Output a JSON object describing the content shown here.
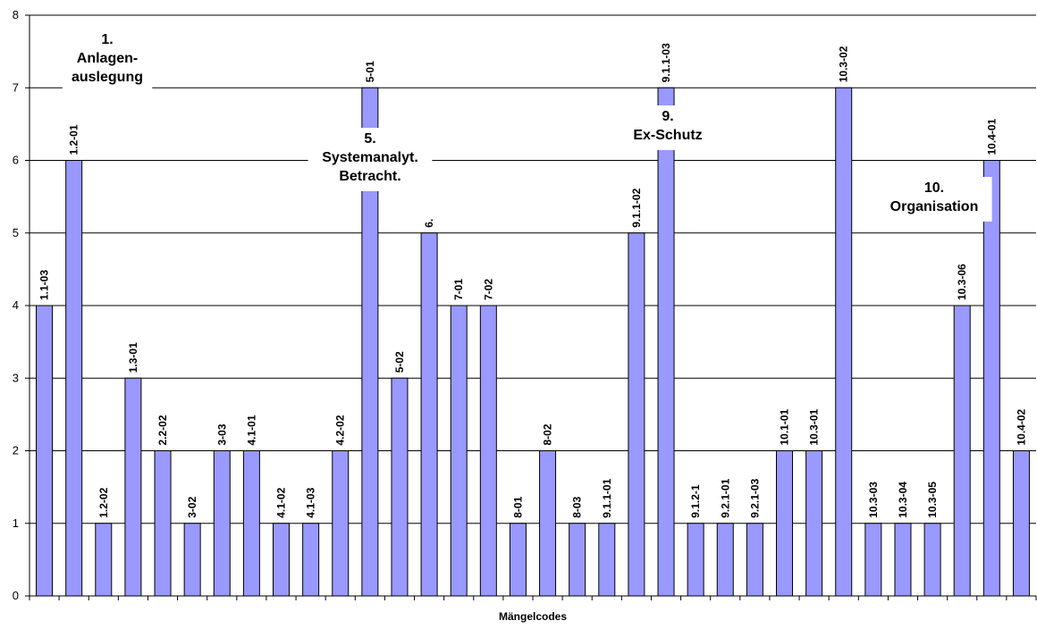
{
  "chart_data": {
    "type": "bar",
    "xlabel": "Mängelcodes",
    "ylabel": "",
    "ylim": [
      0,
      8
    ],
    "yticks": [
      0,
      1,
      2,
      3,
      4,
      5,
      6,
      7,
      8
    ],
    "grid": true,
    "bar_color": "#9999ff",
    "categories": [
      "1.1-03",
      "1.2-01",
      "1.2-02",
      "1.3-01",
      "2.2-02",
      "3-02",
      "3-03",
      "4.1-01",
      "4.1-02",
      "4.1-03",
      "4.2-02",
      "5-01",
      "5-02",
      "6.",
      "7-01",
      "7-02",
      "8-01",
      "8-02",
      "8-03",
      "9.1.1-01",
      "9.1.1-02",
      "9.1.1-03",
      "9.1.2-1",
      "9.2.1-01",
      "9.2.1-03",
      "10.1-01",
      "10.3-01",
      "10.3-02",
      "10.3-03",
      "10.3-04",
      "10.3-05",
      "10.3-06",
      "10.4-01",
      "10.4-02"
    ],
    "values": [
      4,
      6,
      1,
      3,
      2,
      1,
      2,
      2,
      1,
      1,
      2,
      7,
      3,
      5,
      4,
      4,
      1,
      2,
      1,
      1,
      5,
      7,
      1,
      1,
      1,
      2,
      2,
      7,
      1,
      1,
      1,
      4,
      6,
      2
    ],
    "group_annotations": [
      {
        "lines": [
          "1.",
          "Anlagen-",
          "auslegung"
        ]
      },
      {
        "lines": [
          "5.",
          "Systemanalyt.",
          "Betracht."
        ]
      },
      {
        "lines": [
          "9.",
          "Ex-Schutz"
        ]
      },
      {
        "lines": [
          "10.",
          "Organisation"
        ]
      }
    ]
  }
}
